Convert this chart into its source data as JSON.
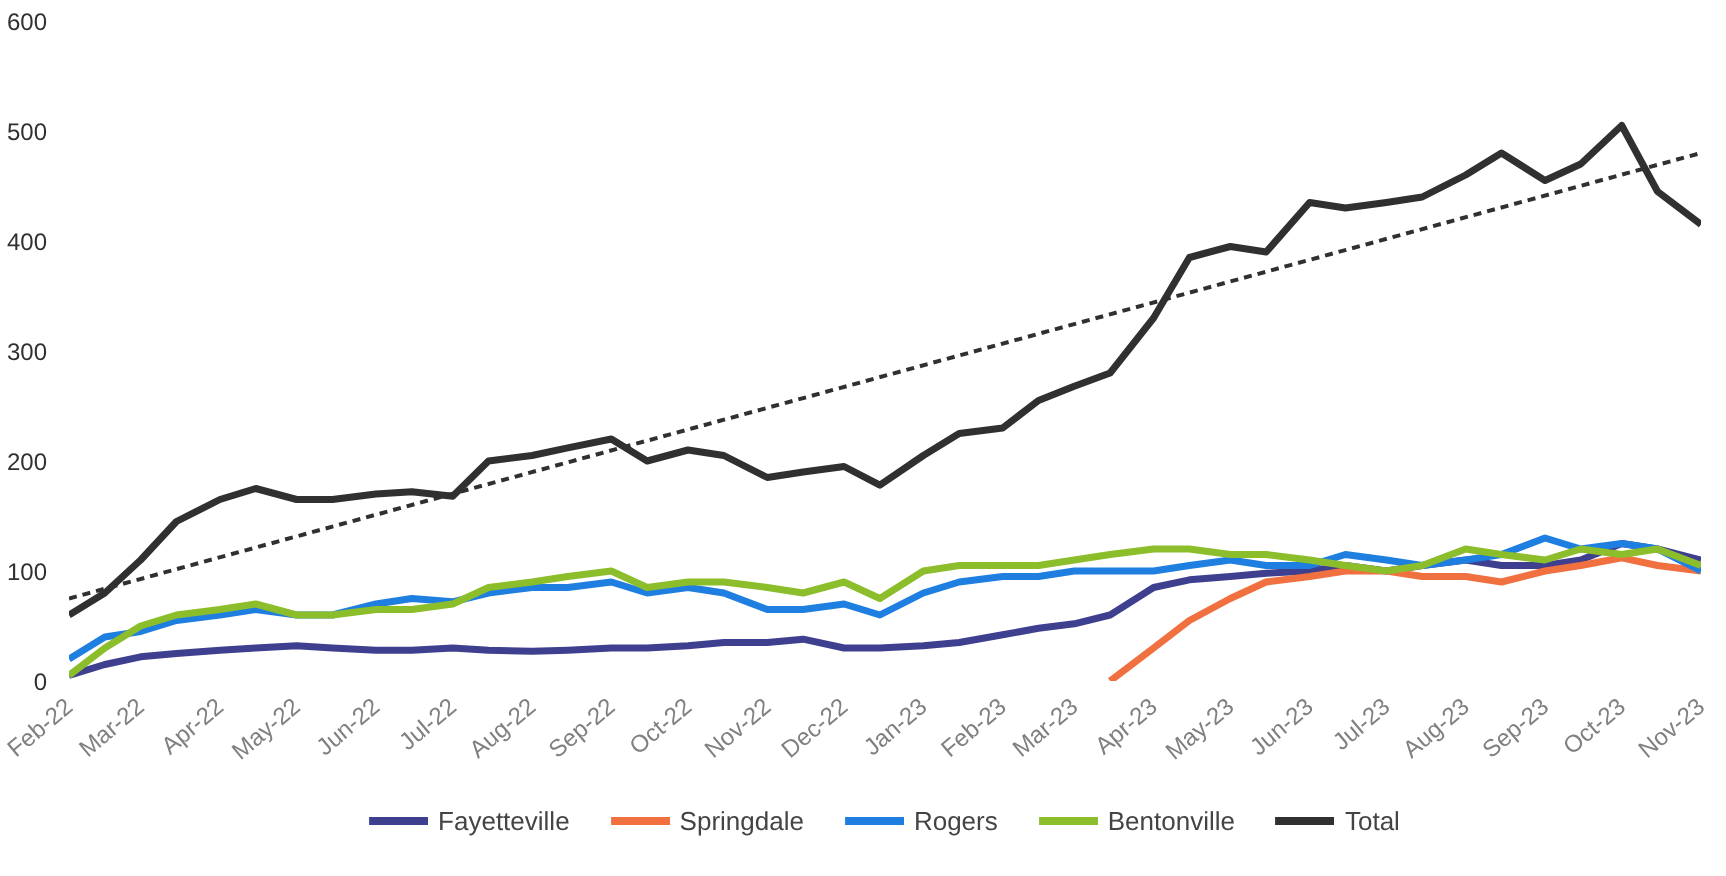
{
  "chart_data": {
    "type": "line",
    "x": [
      "2022-02-01",
      "2022-02-15",
      "2022-03-01",
      "2022-03-15",
      "2022-04-01",
      "2022-04-15",
      "2022-05-01",
      "2022-05-15",
      "2022-06-01",
      "2022-06-15",
      "2022-07-01",
      "2022-07-15",
      "2022-08-01",
      "2022-08-15",
      "2022-09-01",
      "2022-09-15",
      "2022-10-01",
      "2022-10-15",
      "2022-11-01",
      "2022-11-15",
      "2022-12-01",
      "2022-12-15",
      "2023-01-01",
      "2023-01-15",
      "2023-02-01",
      "2023-02-15",
      "2023-03-01",
      "2023-03-15",
      "2023-04-01",
      "2023-04-15",
      "2023-05-01",
      "2023-05-15",
      "2023-06-01",
      "2023-06-15",
      "2023-07-01",
      "2023-07-15",
      "2023-08-01",
      "2023-08-15",
      "2023-09-01",
      "2023-09-15",
      "2023-10-01",
      "2023-10-15",
      "2023-11-01"
    ],
    "series": [
      {
        "name": "Fayetteville",
        "color": "#3f3f8f",
        "values": [
          5,
          15,
          22,
          25,
          28,
          30,
          32,
          30,
          28,
          28,
          30,
          28,
          27,
          28,
          30,
          30,
          32,
          35,
          35,
          38,
          30,
          30,
          32,
          35,
          42,
          48,
          52,
          60,
          85,
          92,
          95,
          98,
          100,
          105,
          100,
          105,
          110,
          105,
          105,
          110,
          125,
          120,
          110
        ]
      },
      {
        "name": "Springdale",
        "color": "#f07040",
        "values": [
          null,
          null,
          null,
          null,
          null,
          null,
          null,
          null,
          null,
          null,
          null,
          null,
          null,
          null,
          null,
          null,
          null,
          null,
          null,
          null,
          null,
          null,
          null,
          null,
          null,
          null,
          null,
          0,
          30,
          55,
          75,
          90,
          95,
          100,
          100,
          95,
          95,
          90,
          100,
          105,
          112,
          105,
          100
        ]
      },
      {
        "name": "Rogers",
        "color": "#1f7fe0",
        "values": [
          20,
          40,
          45,
          55,
          60,
          65,
          60,
          60,
          70,
          75,
          72,
          80,
          85,
          85,
          90,
          80,
          85,
          80,
          65,
          65,
          70,
          60,
          80,
          90,
          95,
          95,
          100,
          100,
          100,
          105,
          110,
          105,
          105,
          115,
          110,
          105,
          110,
          115,
          130,
          120,
          125,
          120,
          100
        ]
      },
      {
        "name": "Bentonville",
        "color": "#8cbd2a",
        "values": [
          5,
          30,
          50,
          60,
          65,
          70,
          60,
          60,
          65,
          65,
          70,
          85,
          90,
          95,
          100,
          85,
          90,
          90,
          85,
          80,
          90,
          75,
          100,
          105,
          105,
          105,
          110,
          115,
          120,
          120,
          115,
          115,
          110,
          105,
          100,
          105,
          120,
          115,
          110,
          120,
          115,
          120,
          105
        ]
      },
      {
        "name": "Total",
        "color": "#303030",
        "values": [
          60,
          80,
          110,
          145,
          165,
          175,
          165,
          165,
          170,
          172,
          168,
          200,
          205,
          212,
          220,
          200,
          210,
          205,
          185,
          190,
          195,
          178,
          205,
          225,
          230,
          255,
          268,
          280,
          330,
          385,
          395,
          390,
          435,
          430,
          435,
          440,
          460,
          480,
          455,
          470,
          505,
          445,
          415
        ]
      },
      {
        "type": "line",
        "color": "#303030",
        "line_style": "dashed",
        "x": [
          "2022-02-01",
          "2023-11-01"
        ],
        "values": [
          75,
          480
        ]
      }
    ],
    "xlim": [
      "2022-02-01",
      "2023-11-01"
    ],
    "xticks": [
      {
        "value": "2022-02-01",
        "label": "Feb-22"
      },
      {
        "value": "2022-03-01",
        "label": "Mar-22"
      },
      {
        "value": "2022-04-01",
        "label": "Apr-22"
      },
      {
        "value": "2022-05-01",
        "label": "May-22"
      },
      {
        "value": "2022-06-01",
        "label": "Jun-22"
      },
      {
        "value": "2022-07-01",
        "label": "Jul-22"
      },
      {
        "value": "2022-08-01",
        "label": "Aug-22"
      },
      {
        "value": "2022-09-01",
        "label": "Sep-22"
      },
      {
        "value": "2022-10-01",
        "label": "Oct-22"
      },
      {
        "value": "2022-11-01",
        "label": "Nov-22"
      },
      {
        "value": "2022-12-01",
        "label": "Dec-22"
      },
      {
        "value": "2023-01-01",
        "label": "Jan-23"
      },
      {
        "value": "2023-02-01",
        "label": "Feb-23"
      },
      {
        "value": "2023-03-01",
        "label": "Mar-23"
      },
      {
        "value": "2023-04-01",
        "label": "Apr-23"
      },
      {
        "value": "2023-05-01",
        "label": "May-23"
      },
      {
        "value": "2023-06-01",
        "label": "Jun-23"
      },
      {
        "value": "2023-07-01",
        "label": "Jul-23"
      },
      {
        "value": "2023-08-01",
        "label": "Aug-23"
      },
      {
        "value": "2023-09-01",
        "label": "Sep-23"
      },
      {
        "value": "2023-10-01",
        "label": "Oct-23"
      },
      {
        "value": "2023-11-01",
        "label": "Nov-23"
      }
    ],
    "ylim": [
      0,
      600
    ],
    "yticks": [
      0,
      100,
      200,
      300,
      400,
      500,
      600
    ],
    "grid": false,
    "legend": "bottom"
  }
}
